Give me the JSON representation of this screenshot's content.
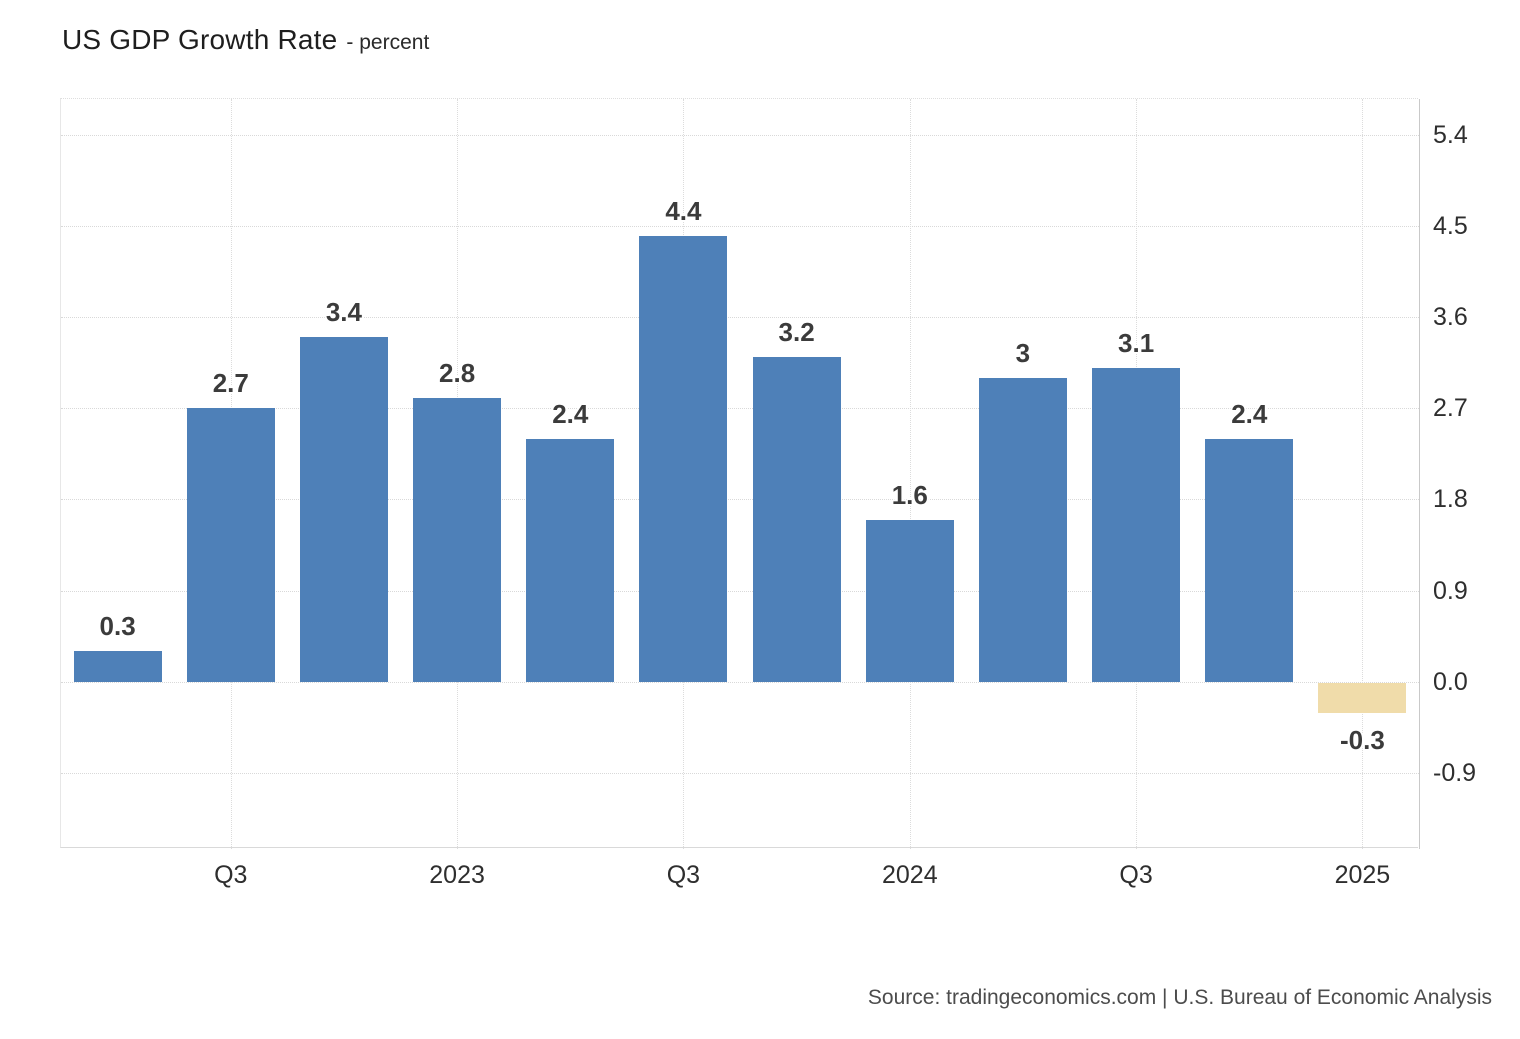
{
  "header": {
    "title": "US GDP Growth Rate",
    "subtitle": "- percent"
  },
  "footer": {
    "source": "Source: tradingeconomics.com | U.S. Bureau of Economic Analysis"
  },
  "colors": {
    "bar_positive": "#4e80b8",
    "bar_negative": "#f0dcaa",
    "value_label": "#3b3b3b",
    "axis_text": "#2e2e2e",
    "grid": "#dcdcdc"
  },
  "chart_data": {
    "type": "bar",
    "title": "US GDP Growth Rate",
    "ylabel": "percent",
    "values": [
      0.3,
      2.7,
      3.4,
      2.8,
      2.4,
      4.4,
      3.2,
      1.6,
      3,
      3.1,
      2.4,
      -0.3
    ],
    "bar_labels": [
      "0.3",
      "2.7",
      "3.4",
      "2.8",
      "2.4",
      "4.4",
      "3.2",
      "1.6",
      "3",
      "3.1",
      "2.4",
      "-0.3"
    ],
    "x_tick_labels": [
      "Q3",
      "2023",
      "Q3",
      "2024",
      "Q3",
      "2025"
    ],
    "x_tick_bar_indices": [
      1,
      3,
      5,
      7,
      9,
      11
    ],
    "y_ticks": [
      5.4,
      4.5,
      3.6,
      2.7,
      1.8,
      0.9,
      0.0,
      -0.9
    ],
    "y_tick_labels": [
      "5.4",
      "4.5",
      "3.6",
      "2.7",
      "1.8",
      "0.9",
      "0.0",
      "-0.9"
    ],
    "ylim": [
      -1.65,
      5.75
    ],
    "grid": true,
    "legend": false
  }
}
